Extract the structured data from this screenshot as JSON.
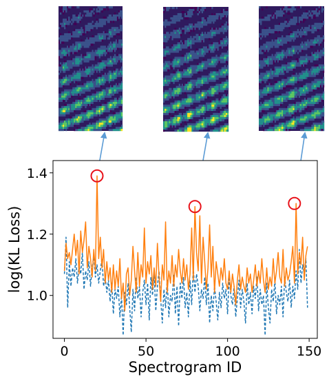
{
  "chart_data": {
    "type": "line",
    "title": "",
    "xlabel": "Spectrogram ID",
    "ylabel": "log(KL Loss)",
    "xlim": [
      -7,
      155
    ],
    "ylim": [
      0.86,
      1.44
    ],
    "xticks": [
      0,
      50,
      100,
      150
    ],
    "yticks": [
      1.0,
      1.2,
      1.4
    ],
    "grid": false,
    "legend": "none",
    "series": [
      {
        "style": "solid",
        "color": "#ff7f0e",
        "values": [
          1.08,
          1.17,
          1.12,
          1.14,
          1.1,
          1.15,
          1.2,
          1.13,
          1.18,
          1.07,
          1.21,
          1.14,
          1.18,
          1.24,
          1.09,
          1.16,
          1.12,
          1.06,
          1.15,
          1.08,
          1.39,
          1.12,
          1.19,
          1.09,
          1.15,
          1.04,
          1.11,
          1.05,
          1.09,
          1.01,
          1.1,
          1.02,
          1.08,
          1.03,
          1.12,
          0.99,
          1.04,
          0.95,
          1.07,
          1.09,
          1.0,
          1.05,
          1.16,
          1.08,
          1.01,
          1.14,
          1.03,
          1.1,
          1.06,
          1.22,
          1.04,
          1.11,
          1.07,
          1.13,
          1.02,
          1.09,
          1.03,
          1.17,
          1.06,
          0.98,
          1.1,
          1.05,
          1.24,
          1.01,
          1.08,
          1.04,
          1.13,
          1.03,
          1.1,
          1.06,
          1.15,
          1.08,
          1.04,
          1.12,
          1.05,
          1.1,
          1.02,
          1.07,
          1.22,
          1.05,
          1.29,
          1.14,
          1.08,
          1.26,
          1.04,
          1.19,
          1.11,
          1.02,
          1.09,
          1.23,
          1.06,
          1.16,
          1.01,
          1.11,
          1.07,
          1.03,
          1.09,
          1.05,
          1.12,
          1.04,
          1.02,
          1.08,
          1.01,
          1.07,
          1.03,
          0.97,
          1.05,
          1.1,
          1.02,
          1.06,
          1.03,
          1.01,
          1.09,
          1.04,
          1.07,
          1.01,
          1.05,
          1.1,
          1.03,
          1.08,
          1.04,
          1.12,
          1.05,
          1.01,
          1.09,
          1.02,
          1.06,
          1.03,
          1.12,
          1.04,
          1.08,
          1.14,
          1.06,
          1.04,
          1.15,
          1.03,
          1.09,
          1.05,
          1.07,
          1.11,
          1.16,
          1.04,
          1.3,
          1.07,
          1.14,
          1.1,
          1.19,
          1.05,
          1.13,
          1.16
        ]
      },
      {
        "style": "dashed",
        "color": "#1f77b4",
        "values": [
          1.07,
          1.19,
          0.96,
          1.11,
          1.03,
          1.09,
          1.06,
          1.12,
          1.04,
          1.1,
          1.07,
          1.14,
          1.02,
          1.08,
          1.05,
          1.11,
          1.03,
          1.09,
          1.13,
          1.06,
          1.1,
          1.04,
          1.08,
          1.12,
          1.03,
          1.06,
          1.01,
          1.05,
          0.98,
          1.04,
          0.94,
          1.02,
          0.99,
          1.03,
          0.93,
          1.0,
          0.87,
          1.01,
          0.97,
          1.04,
          0.96,
          0.88,
          1.02,
          0.95,
          1.06,
          0.99,
          1.03,
          0.93,
          1.01,
          1.05,
          0.97,
          1.04,
          0.92,
          1.06,
          1.0,
          1.07,
          0.95,
          1.03,
          1.08,
          0.99,
          0.91,
          1.02,
          0.96,
          1.05,
          0.93,
          1.0,
          0.98,
          1.07,
          0.94,
          1.03,
          0.9,
          1.04,
          0.99,
          1.06,
          0.96,
          1.01,
          0.93,
          1.05,
          0.97,
          1.09,
          1.01,
          1.07,
          1.03,
          0.95,
          1.02,
          0.99,
          1.06,
          0.97,
          1.04,
          0.91,
          1.0,
          0.95,
          1.03,
          0.98,
          0.92,
          1.01,
          0.96,
          1.04,
          0.99,
          1.02,
          0.94,
          1.06,
          1.0,
          0.97,
          1.03,
          0.93,
          0.99,
          1.05,
          0.96,
          1.02,
          0.98,
          0.91,
          1.04,
          0.97,
          1.01,
          0.94,
          1.03,
          0.99,
          1.06,
          0.95,
          1.02,
          0.97,
          1.0,
          0.87,
          1.04,
          0.96,
          0.91,
          1.02,
          0.98,
          1.05,
          0.94,
          1.0,
          0.97,
          1.03,
          0.93,
          1.06,
          1.01,
          0.98,
          1.05,
          0.96,
          1.03,
          0.99,
          1.08,
          1.02,
          1.15,
          1.04,
          1.1,
          1.07,
          1.12,
          0.96
        ]
      }
    ],
    "highlights": [
      {
        "x": 20,
        "y": 1.39
      },
      {
        "x": 80,
        "y": 1.29
      },
      {
        "x": 141,
        "y": 1.3
      }
    ],
    "highlight_color": "#e8121a",
    "arrow_color": "#5b9bd5"
  }
}
